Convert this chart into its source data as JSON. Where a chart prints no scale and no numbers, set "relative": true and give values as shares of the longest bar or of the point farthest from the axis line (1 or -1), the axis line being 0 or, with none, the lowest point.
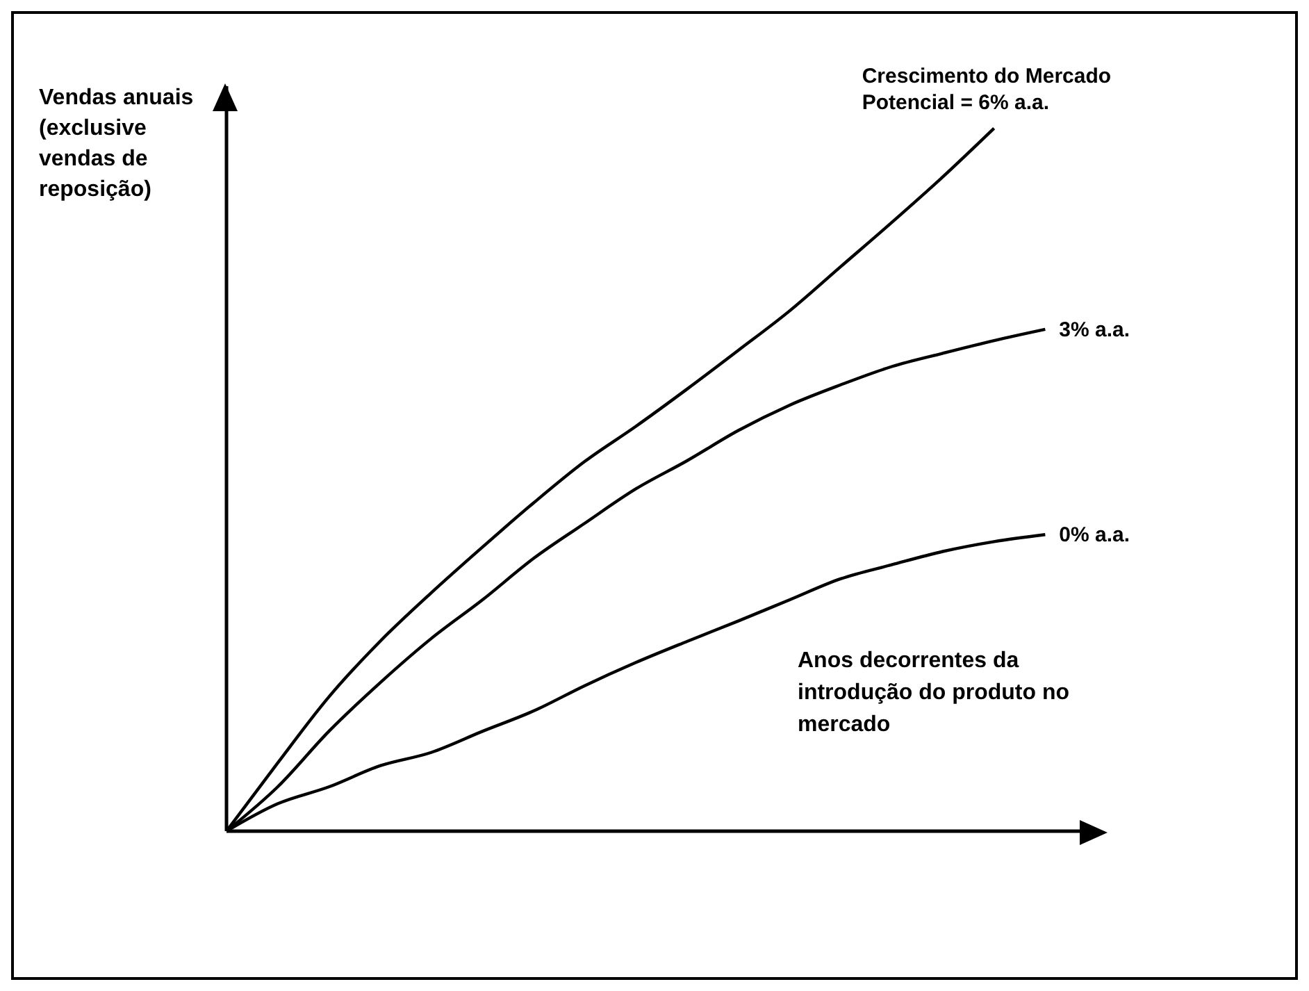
{
  "chart_data": {
    "type": "line",
    "relative": true,
    "ylabel": "Vendas anuais (exclusive vendas de reposição)",
    "xlabel": "Anos decorrentes da introdução do produto no mercado",
    "categories": [
      null,
      null,
      null,
      null,
      null,
      null,
      null,
      null,
      null,
      null,
      null,
      null,
      null,
      null,
      null,
      null,
      null,
      null
    ],
    "legend": false,
    "grid": false,
    "marker": "none",
    "line_style": "solid",
    "series": [
      {
        "name": "Crescimento do Mercado Potencial = 6% a.a.",
        "color": "#000000",
        "values": [
          0,
          0.097,
          0.191,
          0.27,
          0.339,
          0.404,
          0.467,
          0.526,
          0.576,
          0.629,
          0.684,
          0.74,
          0.803,
          0.866,
          0.931,
          1.0,
          null,
          null
        ]
      },
      {
        "name": "3% a.a.",
        "color": "#000000",
        "values": [
          0,
          0.063,
          0.142,
          0.211,
          0.274,
          0.329,
          0.388,
          0.438,
          0.487,
          0.527,
          0.57,
          0.606,
          0.635,
          0.661,
          0.68,
          0.698,
          0.714,
          null
        ]
      },
      {
        "name": "0% a.a.",
        "color": "#000000",
        "values": [
          0,
          0.039,
          0.063,
          0.093,
          0.112,
          0.142,
          0.171,
          0.207,
          0.24,
          0.27,
          0.299,
          0.329,
          0.359,
          0.379,
          0.398,
          0.412,
          0.422,
          null
        ]
      }
    ]
  }
}
